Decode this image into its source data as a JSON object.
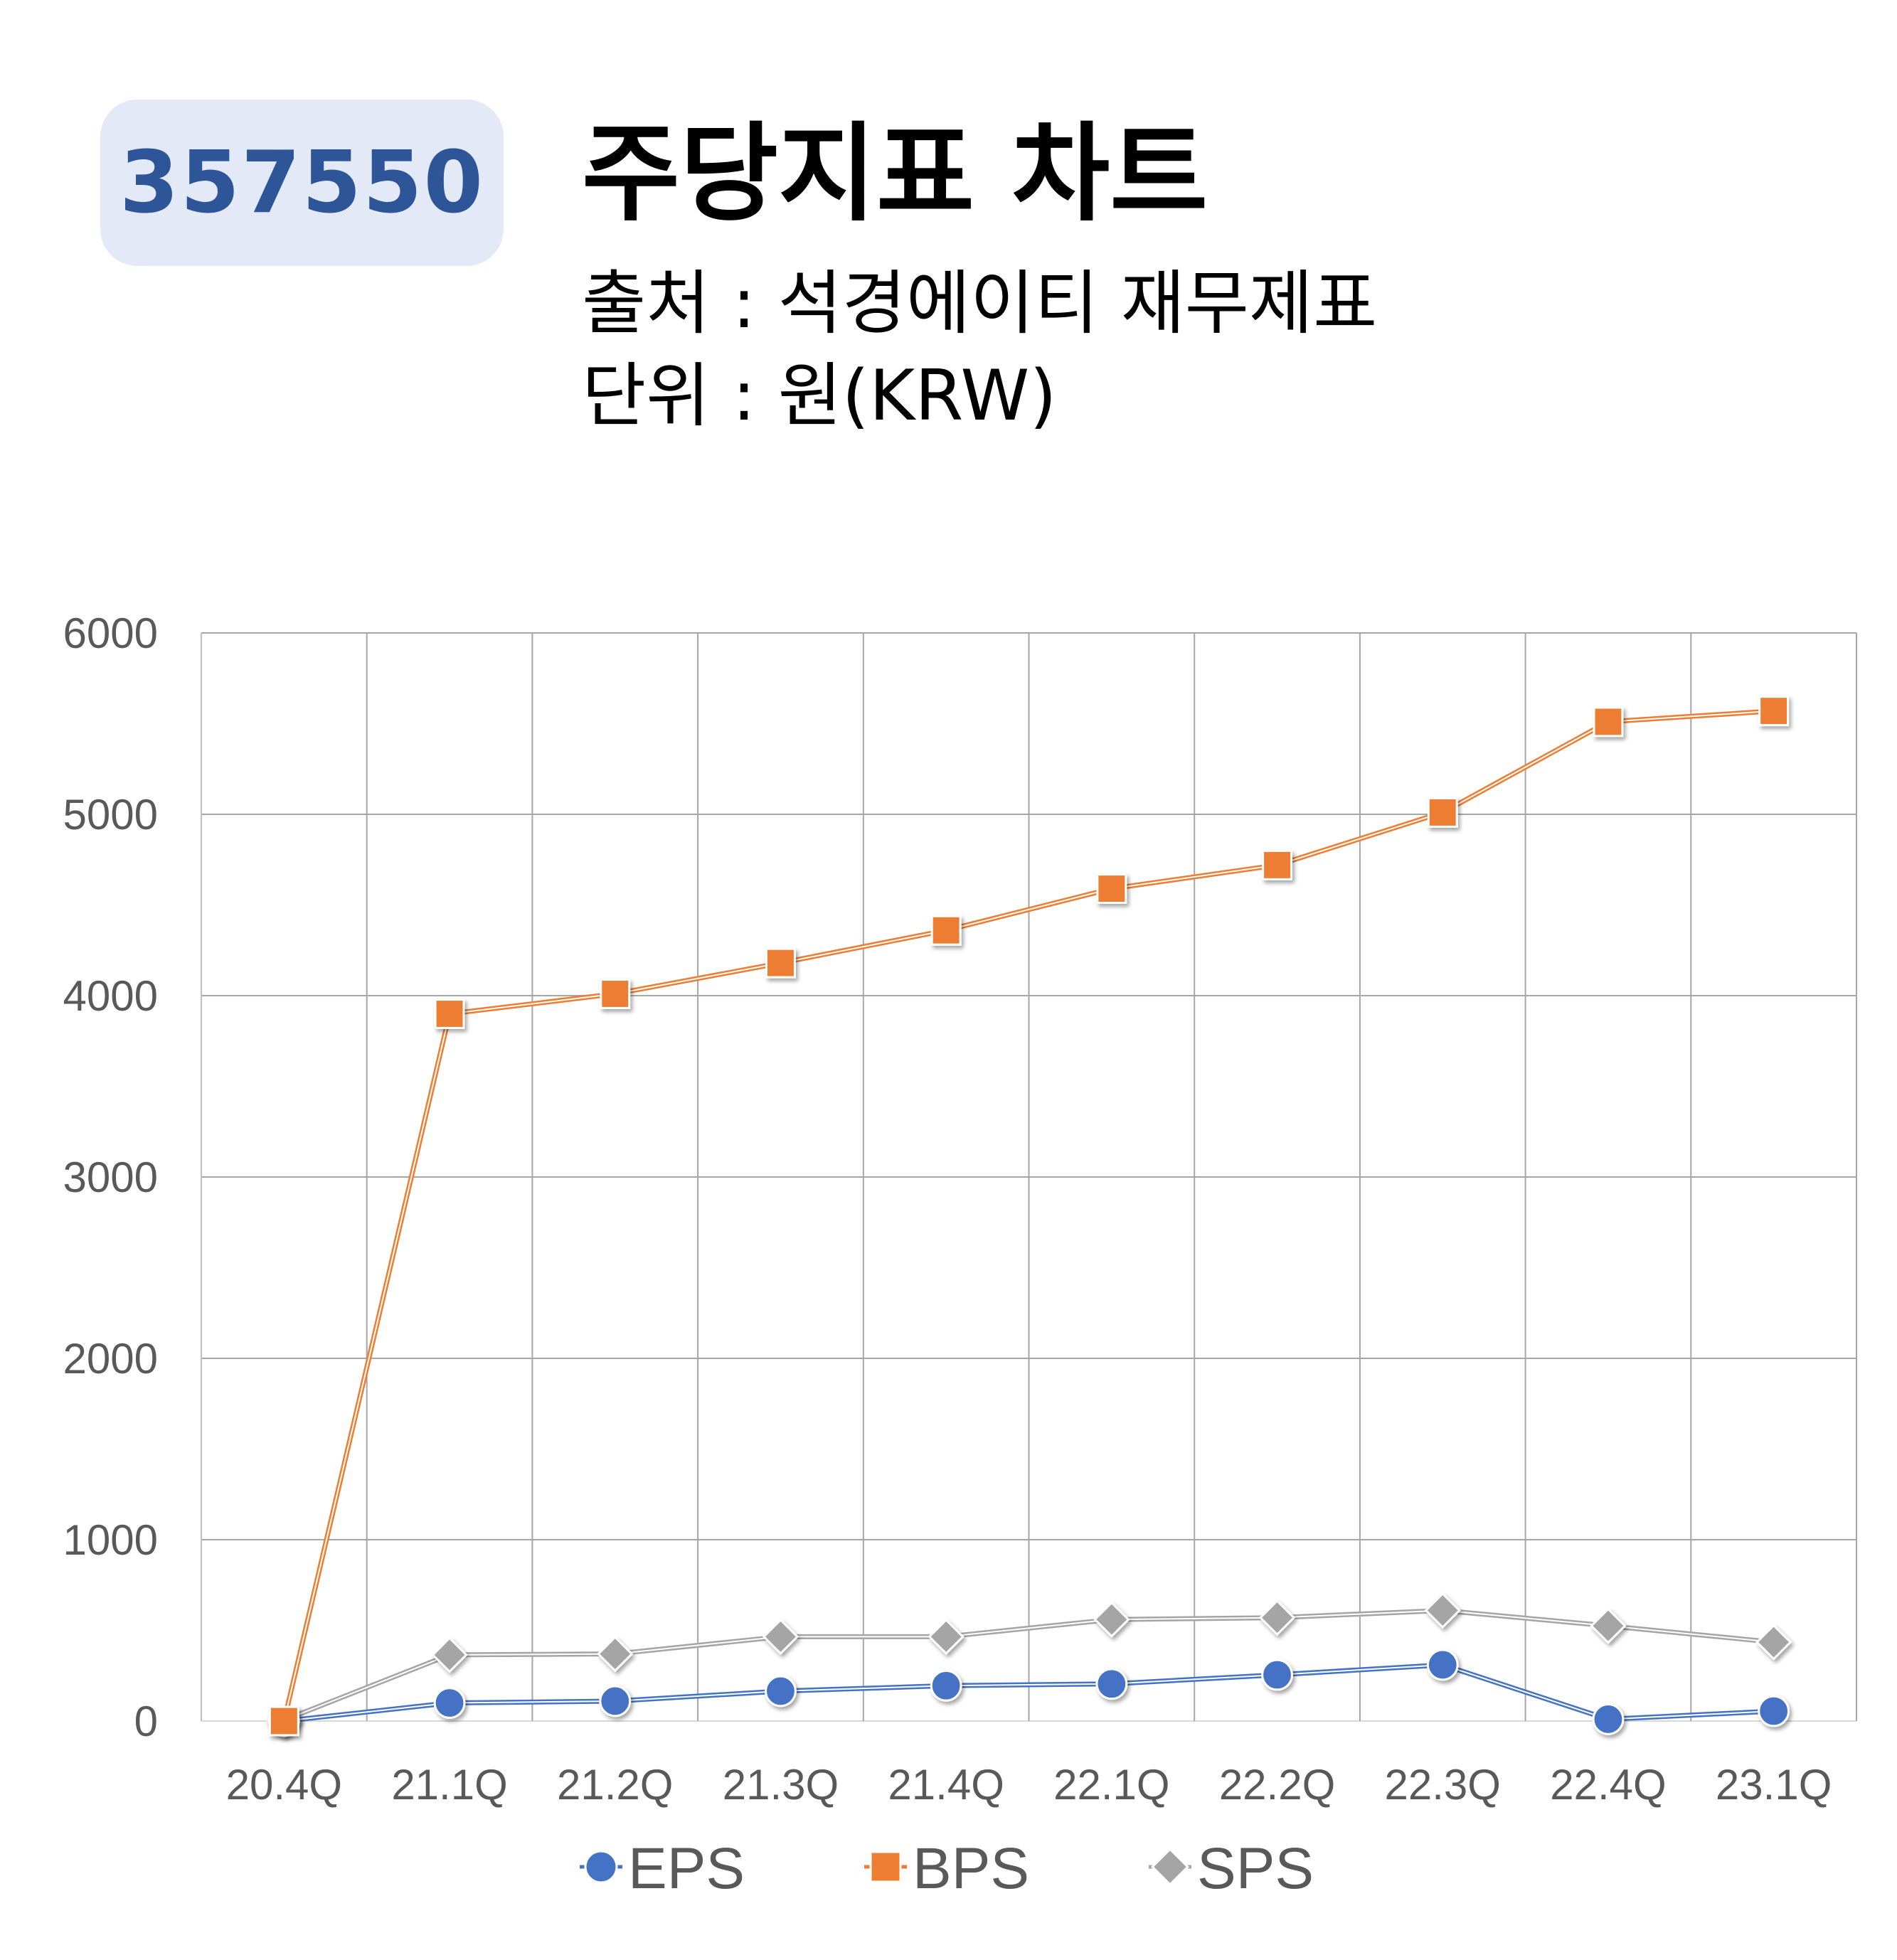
{
  "header": {
    "ticker": "357550",
    "title": "주당지표 차트",
    "source": "출처 : 석경에이티 재무제표",
    "unit": "단위 : 원(KRW)"
  },
  "colors": {
    "badge_bg": "#e3e9f6",
    "badge_text": "#2e5597",
    "grid": "#a6a6a6",
    "axis_text": "#595959"
  },
  "chart_data": {
    "type": "line",
    "categories": [
      "20.4Q",
      "21.1Q",
      "21.2Q",
      "21.3Q",
      "21.4Q",
      "22.1Q",
      "22.2Q",
      "22.3Q",
      "22.4Q",
      "23.1Q"
    ],
    "ylim": [
      0,
      6000
    ],
    "yticks": [
      0,
      1000,
      2000,
      3000,
      4000,
      5000,
      6000
    ],
    "grid": true,
    "legend_position": "bottom",
    "series": [
      {
        "name": "EPS",
        "marker": "circle",
        "color": "#4472c4",
        "values": [
          0,
          100,
          110,
          165,
          195,
          205,
          255,
          310,
          10,
          55
        ]
      },
      {
        "name": "BPS",
        "marker": "square",
        "color": "#ed7d31",
        "values": [
          0,
          3900,
          4010,
          4180,
          4360,
          4590,
          4720,
          5010,
          5510,
          5570
        ]
      },
      {
        "name": "SPS",
        "marker": "diamond",
        "color": "#a5a5a5",
        "values": [
          5,
          365,
          370,
          465,
          465,
          560,
          570,
          610,
          525,
          435
        ]
      }
    ]
  }
}
